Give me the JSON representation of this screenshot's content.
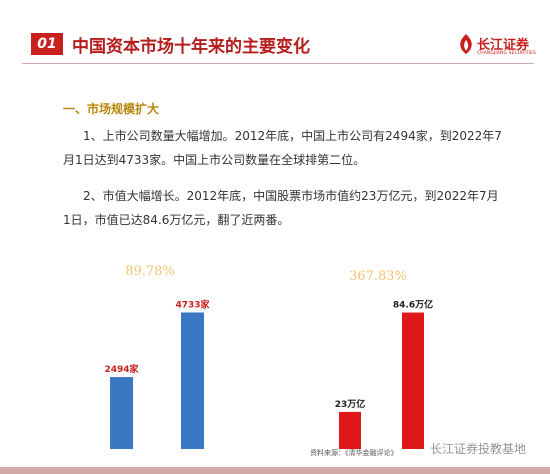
{
  "header": {
    "badge": "01",
    "title": "中国资本市场十年来的主要变化",
    "logo_cn": "长江证券",
    "logo_en": "CHANGJIANG SECURITIES",
    "brand_color": "#c8201e"
  },
  "section": {
    "heading": "一、市场规模扩大",
    "paragraphs": [
      "1、上市公司数量大幅增加。2012年底，中国上市公司有2494家，到2022年7月1日达到4733家。中国上市公司数量在全球排第二位。",
      "2、市值大幅增长。2012年底，中国股票市场市值约23万亿元，到2022年7月1日，市值已达84.6万亿元，翻了近两番。"
    ]
  },
  "chart_data": [
    {
      "type": "bar",
      "categories": [
        "",
        ""
      ],
      "values": [
        2494,
        4733
      ],
      "data_labels": [
        "2494家",
        "4733家"
      ],
      "colors": [
        "#3b78c4",
        "#3b78c4"
      ],
      "label_color": "#c8201e",
      "annotation": "89.78%",
      "ylim": [
        0,
        5200
      ]
    },
    {
      "type": "bar",
      "categories": [
        "",
        ""
      ],
      "values": [
        23,
        84.6
      ],
      "data_labels": [
        "23万亿",
        "84.6万亿"
      ],
      "colors": [
        "#e01818",
        "#e01818"
      ],
      "label_color": "#222222",
      "annotation": "367.83%",
      "ylim": [
        0,
        93
      ]
    }
  ],
  "footer": {
    "source": "资料来源：《清华金融评论》",
    "watermark": "长江证券投教基地"
  }
}
